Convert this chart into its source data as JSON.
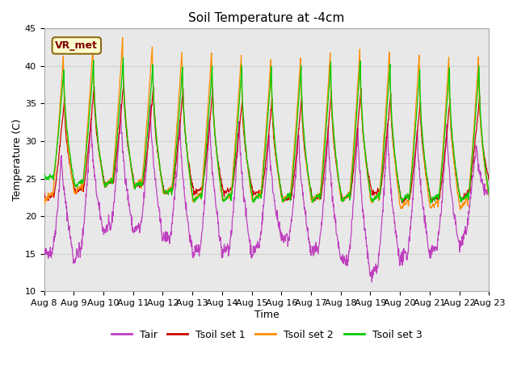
{
  "title": "Soil Temperature at -4cm",
  "xlabel": "Time",
  "ylabel": "Temperature (C)",
  "ylim": [
    10,
    45
  ],
  "xlim_days": [
    0,
    15
  ],
  "x_tick_labels": [
    "Aug 8",
    "Aug 9",
    "Aug 10",
    "Aug 11",
    "Aug 12",
    "Aug 13",
    "Aug 14",
    "Aug 15",
    "Aug 16",
    "Aug 17",
    "Aug 18",
    "Aug 19",
    "Aug 20",
    "Aug 21",
    "Aug 22",
    "Aug 23"
  ],
  "legend_labels": [
    "Tair",
    "Tsoil set 1",
    "Tsoil set 2",
    "Tsoil set 3"
  ],
  "colors": {
    "Tair": "#bf3fbf",
    "Tsoil1": "#cc0000",
    "Tsoil2": "#ff8c00",
    "Tsoil3": "#00cc00"
  },
  "annotation_text": "VR_met",
  "annotation_bg": "#ffffcc",
  "annotation_border": "#8b6914",
  "annotation_text_color": "#800000",
  "grid_color": "#d0d0d0",
  "plot_bg": "#e8e8e8",
  "title_fontsize": 11,
  "axis_fontsize": 9,
  "legend_fontsize": 9,
  "tick_fontsize": 8
}
